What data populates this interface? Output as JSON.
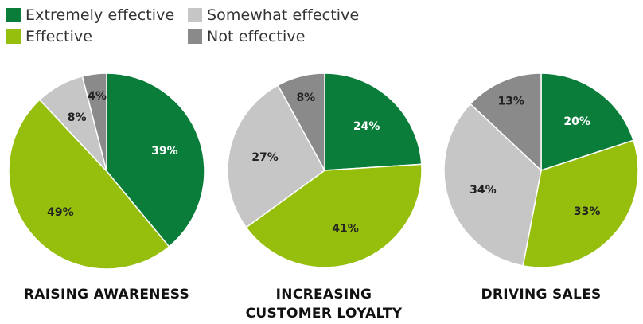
{
  "legend": [
    {
      "label": "Extremely effective",
      "color": "#0a7d3a"
    },
    {
      "label": "Effective",
      "color": "#96be0d"
    },
    {
      "label": "Somewhat effective",
      "color": "#c6c6c6"
    },
    {
      "label": "Not effective",
      "color": "#8a8a8a"
    }
  ],
  "chart_data": [
    {
      "type": "pie",
      "title": "RAISING AWARENESS",
      "categories": [
        "Extremely effective",
        "Effective",
        "Somewhat effective",
        "Not effective"
      ],
      "values": [
        39,
        49,
        8,
        4
      ],
      "labels": [
        "39%",
        "49%",
        "8%",
        "4%"
      ]
    },
    {
      "type": "pie",
      "title": "INCREASING CUSTOMER LOYALTY",
      "categories": [
        "Extremely effective",
        "Effective",
        "Somewhat effective",
        "Not effective"
      ],
      "values": [
        24,
        41,
        27,
        8
      ],
      "labels": [
        "24%",
        "41%",
        "27%",
        "8%"
      ]
    },
    {
      "type": "pie",
      "title": "DRIVING SALES",
      "categories": [
        "Extremely effective",
        "Effective",
        "Somewhat effective",
        "Not effective"
      ],
      "values": [
        20,
        33,
        34,
        13
      ],
      "labels": [
        "20%",
        "33%",
        "34%",
        "13%"
      ]
    }
  ]
}
